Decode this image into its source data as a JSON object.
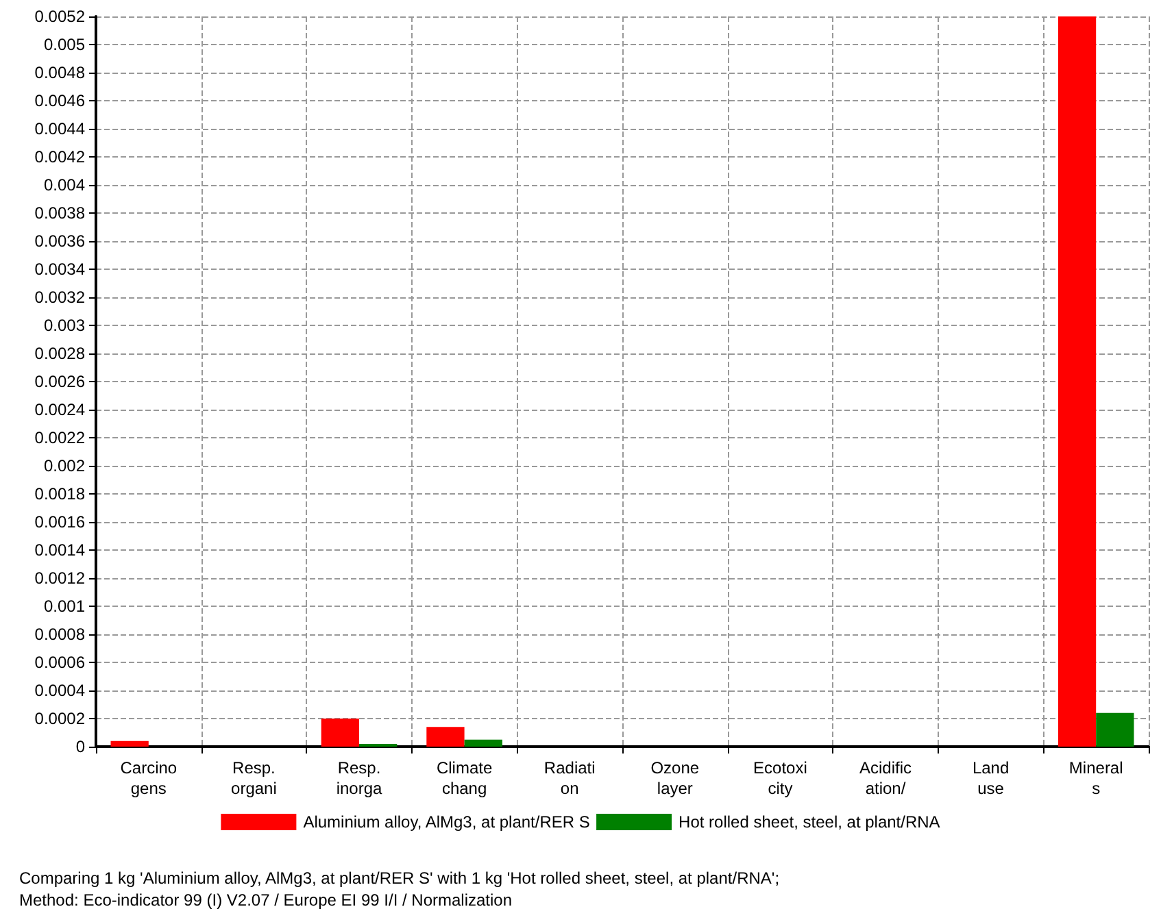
{
  "chart_data": {
    "type": "bar",
    "categories": [
      "Carcino\ngens",
      "Resp.\norgani",
      "Resp.\ninorga",
      "Climate\nchang",
      "Radiati\non",
      "Ozone\nlayer",
      "Ecotoxi\ncity",
      "Acidific\nation/",
      "Land\nuse",
      "Mineral\ns"
    ],
    "series": [
      {
        "name": "Aluminium alloy, AlMg3, at plant/RER S",
        "color": "#ff0000",
        "values": [
          4e-05,
          0,
          0.0002,
          0.00014,
          0,
          0,
          0,
          0,
          0,
          0.0052
        ]
      },
      {
        "name": "Hot rolled sheet, steel, at plant/RNA",
        "color": "#008000",
        "values": [
          0,
          0,
          2e-05,
          5e-05,
          0,
          0,
          0,
          0,
          0,
          0.00024
        ]
      }
    ],
    "ylim": [
      0,
      0.0052
    ],
    "yticks": [
      0,
      0.0002,
      0.0004,
      0.0006,
      0.0008,
      0.001,
      0.0012,
      0.0014,
      0.0016,
      0.0018,
      0.002,
      0.0022,
      0.0024,
      0.0026,
      0.0028,
      0.003,
      0.0032,
      0.0034,
      0.0036,
      0.0038,
      0.004,
      0.0042,
      0.0044,
      0.0046,
      0.0048,
      0.005,
      0.0052
    ],
    "grid": true,
    "legend": "bottom",
    "annotations": [
      "Comparing 1 kg 'Aluminium alloy, AlMg3, at plant/RER S' with 1 kg 'Hot rolled sheet, steel, at plant/RNA';\nMethod: Eco-indicator 99 (I) V2.07 / Europe EI 99 I/I / Normalization"
    ]
  }
}
